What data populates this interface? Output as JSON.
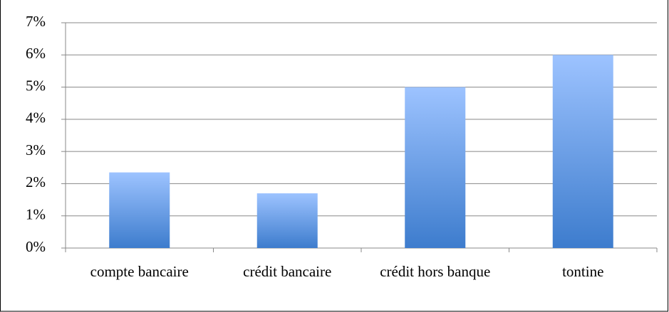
{
  "chart_data": {
    "type": "bar",
    "categories": [
      "compte bancaire",
      "crédit bancaire",
      "crédit hors banque",
      "tontine"
    ],
    "values": [
      2.35,
      1.7,
      5,
      6
    ],
    "color": [
      "#9dc3ff",
      "#3d7ccd"
    ],
    "ylim": [
      0,
      7
    ],
    "yticks": [
      {
        "value": 0,
        "label": "0%"
      },
      {
        "value": 1,
        "label": "1%"
      },
      {
        "value": 2,
        "label": "2%"
      },
      {
        "value": 3,
        "label": "3%"
      },
      {
        "value": 4,
        "label": "4%"
      },
      {
        "value": 5,
        "label": "5%"
      },
      {
        "value": 6,
        "label": "6%"
      },
      {
        "value": 7,
        "label": "7%"
      }
    ],
    "grid": true
  }
}
